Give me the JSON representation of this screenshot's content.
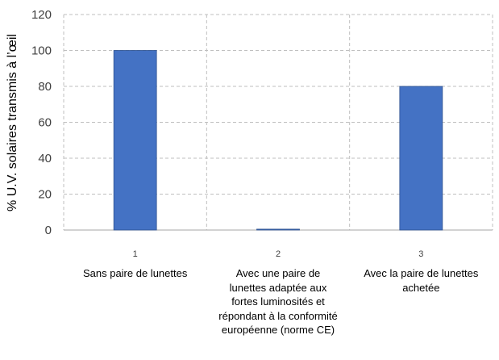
{
  "chart_data": {
    "type": "bar",
    "categories": [
      "1",
      "2",
      "3"
    ],
    "category_descriptions": [
      "Sans paire de lunettes",
      "Avec une paire de lunettes adaptée aux fortes luminosités et répondant à la conformité européenne (norme CE)",
      "Avec la paire de lunettes achetée"
    ],
    "values": [
      100,
      0.5,
      80
    ],
    "ylabel": "% U.V. solaires transmis à l’œil",
    "xlabel": "",
    "ylim": [
      0,
      120
    ],
    "yticks": [
      0,
      20,
      40,
      60,
      80,
      100,
      120
    ],
    "grid": true,
    "legend": "none",
    "colors": {
      "bar": "#4472c4",
      "bar_edge": "#2f528f",
      "grid": "#bfbfbf",
      "axis": "#a6a6a6"
    }
  }
}
